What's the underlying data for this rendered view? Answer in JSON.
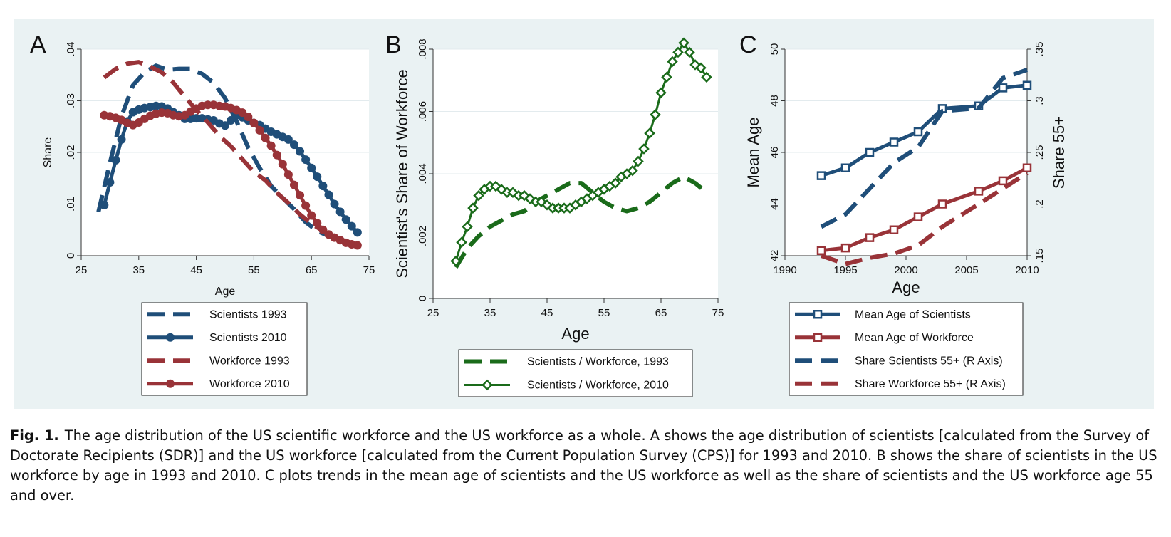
{
  "caption": {
    "label": "Fig. 1.",
    "text": "The age distribution of the US scientific workforce and the US workforce as a whole. A shows the age distribution of scientists [calculated from the Survey of Doctorate Recipients (SDR)] and the US workforce [calculated from the Current Population Survey (CPS)] for 1993 and 2010. B shows the share of scientists in the US workforce by age in 1993 and 2010. C plots trends in the mean age of scientists and the US workforce as well as the share of scientists and the US workforce age 55 and over."
  },
  "colors": {
    "navy": "#1f4e79",
    "maroon": "#993338",
    "green": "#1a6b1a",
    "panel": "#eaf2f3"
  },
  "chart_data": [
    {
      "panel_letter": "A",
      "type": "line",
      "xlabel": "Age",
      "ylabel": "Share",
      "xlim": [
        25,
        75
      ],
      "ylim": [
        0,
        0.04
      ],
      "xticks": [
        25,
        35,
        45,
        55,
        65,
        75
      ],
      "yticks": [
        0,
        0.01,
        0.02,
        0.03,
        0.04
      ],
      "ytick_labels": [
        "0",
        ".01",
        ".02",
        ".03",
        ".04"
      ],
      "grid": true,
      "legend_position": "bottom",
      "series": [
        {
          "name": "Scientists 1993",
          "color": "navy",
          "style": "dash",
          "marker": "none",
          "x": [
            28,
            30,
            32,
            34,
            36,
            38,
            40,
            42,
            44,
            46,
            48,
            50,
            52,
            54,
            56,
            58,
            60,
            62,
            64,
            66,
            68,
            70,
            72
          ],
          "y": [
            0.0085,
            0.018,
            0.027,
            0.033,
            0.0355,
            0.0368,
            0.036,
            0.0362,
            0.0362,
            0.0352,
            0.0335,
            0.0305,
            0.026,
            0.021,
            0.017,
            0.0135,
            0.0112,
            0.009,
            0.0065,
            0.0048,
            0.0038,
            0.003,
            0.0022
          ]
        },
        {
          "name": "Scientists 2010",
          "color": "navy",
          "style": "solid",
          "marker": "dot",
          "x": [
            29,
            30,
            31,
            32,
            33,
            34,
            35,
            36,
            37,
            38,
            39,
            40,
            41,
            42,
            43,
            44,
            45,
            46,
            47,
            48,
            49,
            50,
            51,
            52,
            53,
            54,
            55,
            56,
            57,
            58,
            59,
            60,
            61,
            62,
            63,
            64,
            65,
            66,
            67,
            68,
            69,
            70,
            71,
            72,
            73
          ],
          "y": [
            0.0098,
            0.0142,
            0.0185,
            0.0225,
            0.026,
            0.0278,
            0.0283,
            0.0286,
            0.0288,
            0.029,
            0.0289,
            0.0285,
            0.0278,
            0.0272,
            0.0265,
            0.0265,
            0.0266,
            0.0266,
            0.0264,
            0.0262,
            0.0256,
            0.0252,
            0.0262,
            0.0272,
            0.0268,
            0.0262,
            0.0257,
            0.0253,
            0.0246,
            0.024,
            0.0235,
            0.023,
            0.0225,
            0.0215,
            0.0202,
            0.0186,
            0.017,
            0.0153,
            0.0135,
            0.0118,
            0.01,
            0.0085,
            0.007,
            0.0057,
            0.0045
          ]
        },
        {
          "name": "Workforce 1993",
          "color": "maroon",
          "style": "dash",
          "marker": "none",
          "x": [
            29,
            31,
            33,
            35,
            37,
            39,
            41,
            43,
            45,
            47,
            49,
            51,
            53,
            55,
            57,
            59,
            61,
            63,
            65,
            67,
            69,
            71,
            73
          ],
          "y": [
            0.0345,
            0.0362,
            0.0372,
            0.0375,
            0.0366,
            0.0355,
            0.0335,
            0.0308,
            0.0282,
            0.0258,
            0.0232,
            0.0212,
            0.0187,
            0.0162,
            0.0146,
            0.0122,
            0.0102,
            0.008,
            0.0062,
            0.0048,
            0.0036,
            0.0028,
            0.0022
          ]
        },
        {
          "name": "Workforce 2010",
          "color": "maroon",
          "style": "solid",
          "marker": "dot",
          "x": [
            29,
            30,
            31,
            32,
            33,
            34,
            35,
            36,
            37,
            38,
            39,
            40,
            41,
            42,
            43,
            44,
            45,
            46,
            47,
            48,
            49,
            50,
            51,
            52,
            53,
            54,
            55,
            56,
            57,
            58,
            59,
            60,
            61,
            62,
            63,
            64,
            65,
            66,
            67,
            68,
            69,
            70,
            71,
            72,
            73
          ],
          "y": [
            0.0272,
            0.027,
            0.0267,
            0.0263,
            0.0257,
            0.0253,
            0.0258,
            0.0265,
            0.0271,
            0.0275,
            0.0277,
            0.0276,
            0.0272,
            0.027,
            0.0272,
            0.0279,
            0.0285,
            0.029,
            0.0292,
            0.0292,
            0.029,
            0.0289,
            0.0286,
            0.0282,
            0.0277,
            0.0269,
            0.0257,
            0.0243,
            0.0228,
            0.0213,
            0.0195,
            0.0177,
            0.0157,
            0.0137,
            0.0117,
            0.0097,
            0.0078,
            0.0063,
            0.005,
            0.0041,
            0.0035,
            0.003,
            0.0025,
            0.0022,
            0.002
          ]
        }
      ]
    },
    {
      "panel_letter": "B",
      "type": "line",
      "xlabel": "Age",
      "ylabel": "Scientist's Share of Workforce",
      "xlim": [
        25,
        75
      ],
      "ylim": [
        0,
        0.008
      ],
      "xticks": [
        25,
        35,
        45,
        55,
        65,
        75
      ],
      "yticks": [
        0,
        0.002,
        0.004,
        0.006,
        0.008
      ],
      "ytick_labels": [
        "0",
        ".002",
        ".004",
        ".006",
        ".008"
      ],
      "grid": true,
      "legend_position": "bottom",
      "series": [
        {
          "name": "Scientists / Workforce, 1993",
          "color": "green",
          "style": "dash",
          "marker": "none",
          "x": [
            29,
            31,
            33,
            35,
            37,
            39,
            41,
            43,
            45,
            47,
            49,
            51,
            53,
            55,
            57,
            59,
            61,
            63,
            65,
            67,
            69,
            71,
            73
          ],
          "y": [
            0.001,
            0.0016,
            0.002,
            0.0023,
            0.0025,
            0.0027,
            0.0028,
            0.0031,
            0.0033,
            0.0035,
            0.0037,
            0.0037,
            0.0034,
            0.0031,
            0.0029,
            0.0028,
            0.0029,
            0.0031,
            0.0034,
            0.0037,
            0.0039,
            0.0037,
            0.0034
          ]
        },
        {
          "name": "Scientists / Workforce, 2010",
          "color": "green",
          "style": "solid",
          "marker": "diamond",
          "x": [
            29,
            30,
            31,
            32,
            33,
            34,
            35,
            36,
            37,
            38,
            39,
            40,
            41,
            42,
            43,
            44,
            45,
            46,
            47,
            48,
            49,
            50,
            51,
            52,
            53,
            54,
            55,
            56,
            57,
            58,
            59,
            60,
            61,
            62,
            63,
            64,
            65,
            66,
            67,
            68,
            69,
            70,
            71,
            72,
            73
          ],
          "y": [
            0.0012,
            0.0018,
            0.0023,
            0.0029,
            0.0033,
            0.0035,
            0.0036,
            0.0036,
            0.0035,
            0.0034,
            0.0034,
            0.0033,
            0.0033,
            0.0032,
            0.0031,
            0.0031,
            0.003,
            0.0029,
            0.0029,
            0.0029,
            0.0029,
            0.003,
            0.0031,
            0.0032,
            0.0033,
            0.0034,
            0.0035,
            0.0036,
            0.0037,
            0.0039,
            0.004,
            0.0041,
            0.0044,
            0.0048,
            0.0053,
            0.0059,
            0.0066,
            0.0071,
            0.0076,
            0.0079,
            0.0082,
            0.0079,
            0.0075,
            0.0074,
            0.0071
          ]
        }
      ]
    },
    {
      "panel_letter": "C",
      "type": "line",
      "xlabel": "Age",
      "ylabel": "Mean Age",
      "ylabel_right": "Share 55+",
      "xlim": [
        1990,
        2010
      ],
      "ylim": [
        42,
        50
      ],
      "ylim_right": [
        0.15,
        0.35
      ],
      "xticks": [
        1990,
        1995,
        2000,
        2005,
        2010
      ],
      "yticks": [
        42,
        44,
        46,
        48,
        50
      ],
      "yticks_right": [
        0.15,
        0.2,
        0.25,
        0.3,
        0.35
      ],
      "ytick_labels_right": [
        ".15",
        ".2",
        ".25",
        ".3",
        ".35"
      ],
      "grid": true,
      "legend_position": "bottom",
      "series": [
        {
          "name": "Mean Age of Scientists",
          "color": "navy",
          "style": "solid",
          "marker": "square",
          "axis": "left",
          "x": [
            1993,
            1995,
            1997,
            1999,
            2001,
            2003,
            2006,
            2008,
            2010
          ],
          "y": [
            45.1,
            45.4,
            46.0,
            46.4,
            46.8,
            47.7,
            47.8,
            48.5,
            48.6
          ]
        },
        {
          "name": "Mean Age of Workforce",
          "color": "maroon",
          "style": "solid",
          "marker": "square",
          "axis": "left",
          "x": [
            1993,
            1995,
            1997,
            1999,
            2001,
            2003,
            2006,
            2008,
            2010
          ],
          "y": [
            42.2,
            42.3,
            42.7,
            43.0,
            43.5,
            44.0,
            44.5,
            44.9,
            45.4
          ]
        },
        {
          "name": "Share Scientists 55+ (R Axis)",
          "color": "navy",
          "style": "dash",
          "marker": "none",
          "axis": "right",
          "x": [
            1993,
            1995,
            1997,
            1999,
            2001,
            2003,
            2006,
            2008,
            2010
          ],
          "y": [
            0.178,
            0.19,
            0.215,
            0.24,
            0.255,
            0.29,
            0.293,
            0.322,
            0.33
          ]
        },
        {
          "name": "Share Workforce 55+ (R Axis)",
          "color": "maroon",
          "style": "dash",
          "marker": "none",
          "axis": "right",
          "x": [
            1993,
            1995,
            1997,
            1999,
            2001,
            2003,
            2006,
            2008,
            2010
          ],
          "y": [
            0.15,
            0.142,
            0.148,
            0.152,
            0.16,
            0.178,
            0.2,
            0.215,
            0.23
          ]
        }
      ]
    }
  ]
}
